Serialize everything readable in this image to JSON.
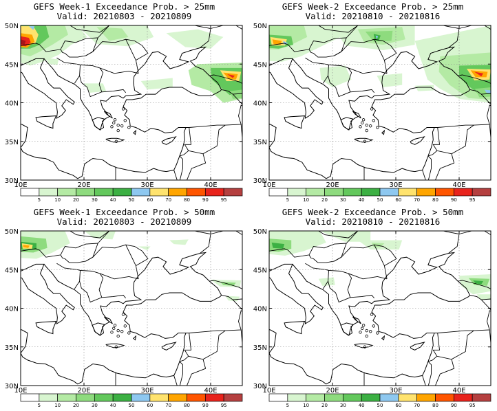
{
  "colors": {
    "light_green": "#d8f5d0",
    "green2": "#b4eaa4",
    "green3": "#8edb7e",
    "green4": "#63c85c",
    "green5": "#3cb043",
    "green6": "#1e9632",
    "lightblue": "#8ec8f0",
    "yellow": "#ffe36e",
    "orange": "#ffa500",
    "orange_red": "#ff5500",
    "red": "#e8231c",
    "darkred": "#a8141a",
    "maroon": "#b54040"
  },
  "colorbar": {
    "ticks": [
      "5",
      "10",
      "20",
      "30",
      "40",
      "50",
      "60",
      "70",
      "80",
      "90",
      "95"
    ]
  },
  "axes": {
    "lat_labels": [
      "50N",
      "45N",
      "40N",
      "35N",
      "30N"
    ],
    "lon_labels": [
      "10E",
      "20E",
      "30E",
      "40E"
    ]
  },
  "panels": [
    {
      "title_line1": "GEFS Week-1 Exceedance Prob. > 25mm",
      "title_line2": "Valid: 20210803 - 20210809"
    },
    {
      "title_line1": "GEFS Week-2 Exceedance Prob. > 25mm",
      "title_line2": "Valid: 20210810 - 20210816"
    },
    {
      "title_line1": "GEFS Week-1 Exceedance Prob. > 50mm",
      "title_line2": "Valid: 20210803 - 20210809"
    },
    {
      "title_line1": "GEFS Week-2 Exceedance Prob. > 50mm",
      "title_line2": "Valid: 20210810 - 20210816"
    }
  ]
}
